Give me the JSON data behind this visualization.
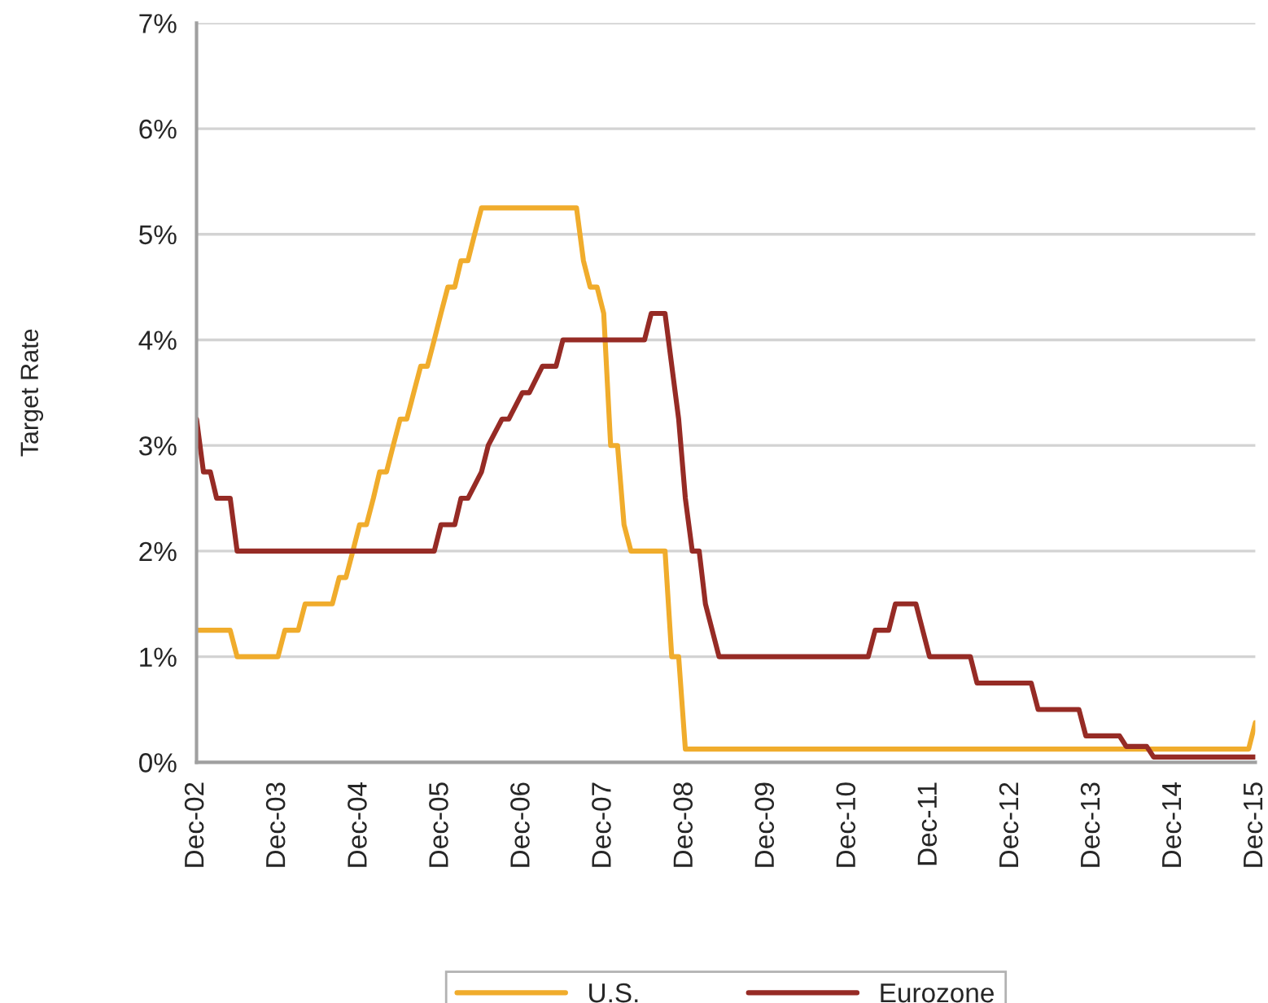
{
  "chart_data": {
    "type": "line",
    "ylabel": "Target Rate",
    "series": [
      {
        "name": "U.S.",
        "color": "#f0ac2c",
        "x": [
          "2002-12",
          "2003-05",
          "2003-06",
          "2003-12",
          "2004-01",
          "2004-03",
          "2004-04",
          "2004-08",
          "2004-09",
          "2004-10",
          "2004-11",
          "2004-12",
          "2005-01",
          "2005-02",
          "2005-03",
          "2005-04",
          "2005-05",
          "2005-06",
          "2005-07",
          "2005-08",
          "2005-09",
          "2005-10",
          "2005-11",
          "2005-12",
          "2006-01",
          "2006-02",
          "2006-03",
          "2006-04",
          "2006-05",
          "2006-06",
          "2007-08",
          "2007-09",
          "2007-10",
          "2007-11",
          "2007-12",
          "2008-01",
          "2008-02",
          "2008-03",
          "2008-04",
          "2008-09",
          "2008-10",
          "2008-11",
          "2008-12",
          "2015-11",
          "2015-12"
        ],
        "values": [
          1.25,
          1.25,
          1.0,
          1.0,
          1.25,
          1.25,
          1.5,
          1.5,
          1.75,
          1.75,
          2.0,
          2.25,
          2.25,
          2.5,
          2.75,
          2.75,
          3.0,
          3.25,
          3.25,
          3.5,
          3.75,
          3.75,
          4.0,
          4.25,
          4.5,
          4.5,
          4.75,
          4.75,
          5.0,
          5.25,
          5.25,
          4.75,
          4.5,
          4.5,
          4.25,
          3.0,
          3.0,
          2.25,
          2.0,
          2.0,
          1.0,
          1.0,
          0.125,
          0.125,
          0.375
        ]
      },
      {
        "name": "Eurozone",
        "color": "#962b25",
        "x": [
          "2002-12",
          "2003-01",
          "2003-02",
          "2003-03",
          "2003-05",
          "2003-06",
          "2005-11",
          "2005-12",
          "2006-02",
          "2006-03",
          "2006-04",
          "2006-06",
          "2006-07",
          "2006-09",
          "2006-10",
          "2006-12",
          "2007-01",
          "2007-03",
          "2007-05",
          "2007-06",
          "2008-06",
          "2008-07",
          "2008-09",
          "2008-11",
          "2008-12",
          "2009-01",
          "2009-02",
          "2009-03",
          "2009-05",
          "2011-03",
          "2011-04",
          "2011-06",
          "2011-07",
          "2011-10",
          "2011-12",
          "2012-06",
          "2012-07",
          "2013-03",
          "2013-04",
          "2013-10",
          "2013-11",
          "2014-04",
          "2014-05",
          "2014-08",
          "2014-09",
          "2015-12"
        ],
        "values": [
          3.25,
          2.75,
          2.75,
          2.5,
          2.5,
          2.0,
          2.0,
          2.25,
          2.25,
          2.5,
          2.5,
          2.75,
          3.0,
          3.25,
          3.25,
          3.5,
          3.5,
          3.75,
          3.75,
          4.0,
          4.0,
          4.25,
          4.25,
          3.25,
          2.5,
          2.0,
          2.0,
          1.5,
          1.0,
          1.0,
          1.25,
          1.25,
          1.5,
          1.5,
          1.0,
          1.0,
          0.75,
          0.75,
          0.5,
          0.5,
          0.25,
          0.25,
          0.15,
          0.15,
          0.05,
          0.05
        ]
      }
    ],
    "xlim": [
      "2002-12",
      "2015-12"
    ],
    "xticks": [
      {
        "value": "2002-12",
        "label": "Dec-02"
      },
      {
        "value": "2003-12",
        "label": "Dec-03"
      },
      {
        "value": "2004-12",
        "label": "Dec-04"
      },
      {
        "value": "2005-12",
        "label": "Dec-05"
      },
      {
        "value": "2006-12",
        "label": "Dec-06"
      },
      {
        "value": "2007-12",
        "label": "Dec-07"
      },
      {
        "value": "2008-12",
        "label": "Dec-08"
      },
      {
        "value": "2009-12",
        "label": "Dec-09"
      },
      {
        "value": "2010-12",
        "label": "Dec-10"
      },
      {
        "value": "2011-12",
        "label": "Dec-11"
      },
      {
        "value": "2012-12",
        "label": "Dec-12"
      },
      {
        "value": "2013-12",
        "label": "Dec-13"
      },
      {
        "value": "2014-12",
        "label": "Dec-14"
      },
      {
        "value": "2015-12",
        "label": "Dec-15"
      }
    ],
    "ylim": [
      0,
      7
    ],
    "yticks": [
      {
        "value": 0,
        "label": "0%"
      },
      {
        "value": 1,
        "label": "1%"
      },
      {
        "value": 2,
        "label": "2%"
      },
      {
        "value": 3,
        "label": "3%"
      },
      {
        "value": 4,
        "label": "4%"
      },
      {
        "value": 5,
        "label": "5%"
      },
      {
        "value": 6,
        "label": "6%"
      },
      {
        "value": 7,
        "label": "7%"
      }
    ],
    "grid": "y",
    "legend": "bottom",
    "marker": "none",
    "line_style": "solid"
  }
}
